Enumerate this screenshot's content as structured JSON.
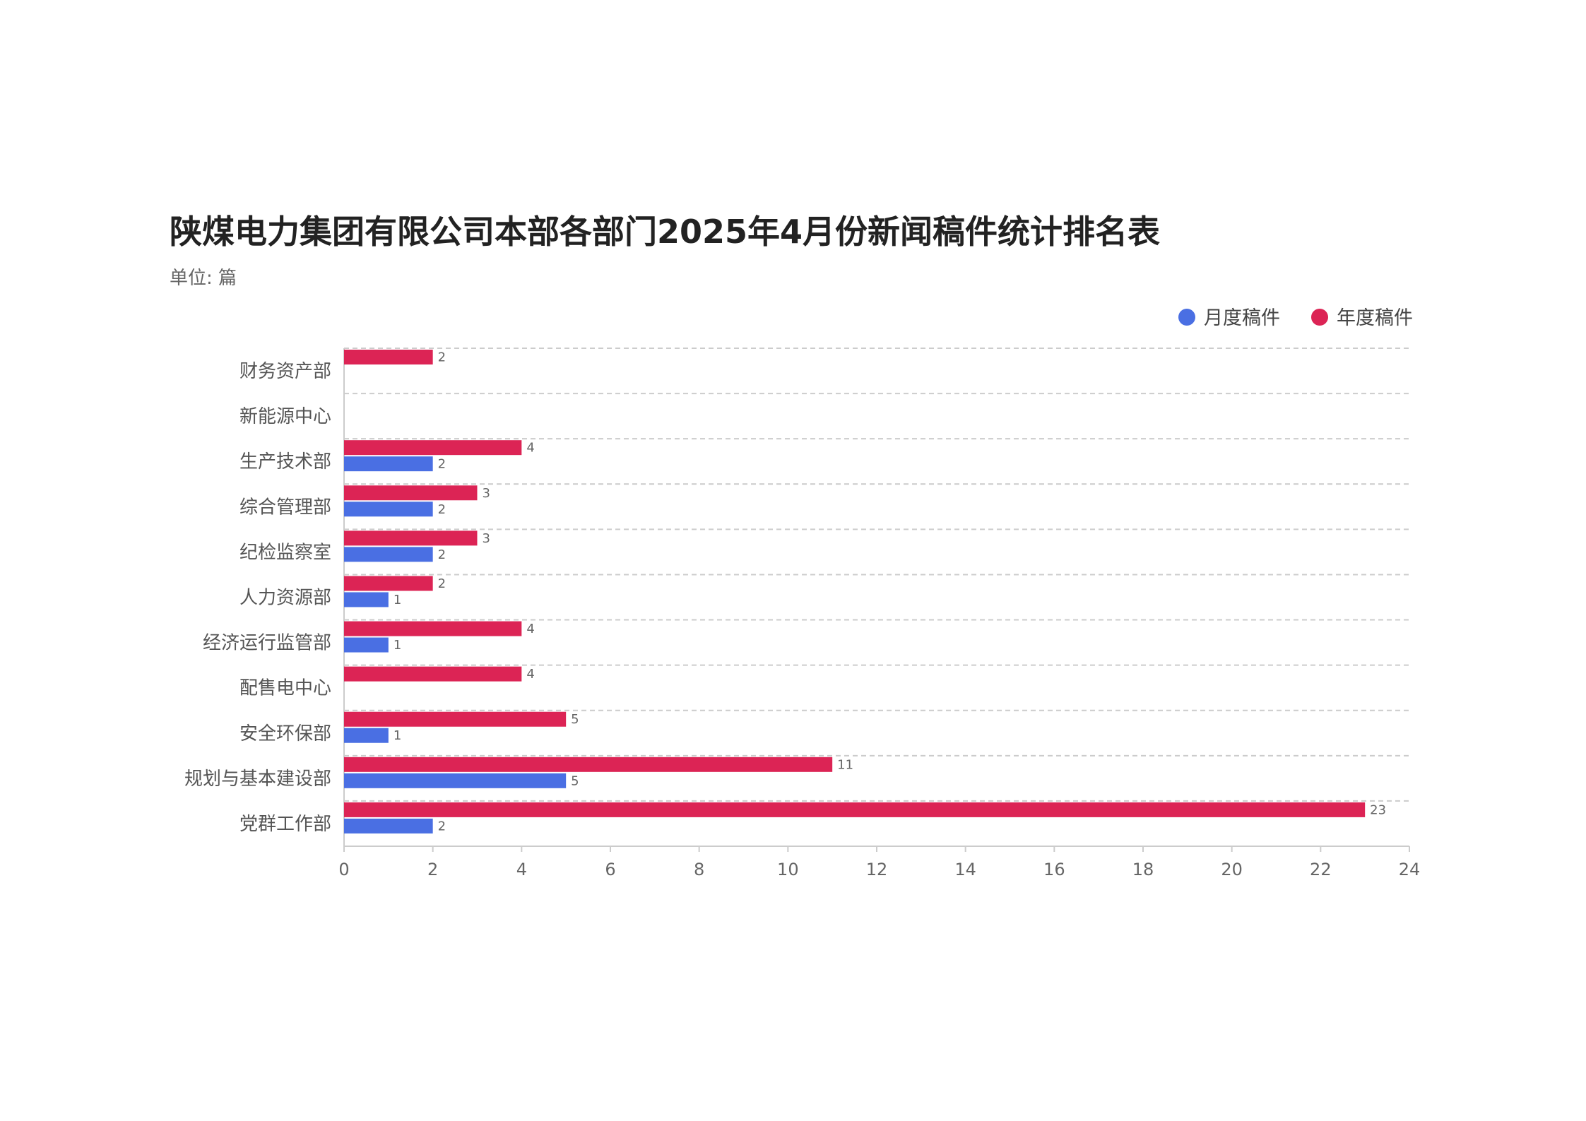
{
  "chart_data": {
    "type": "bar",
    "orientation": "horizontal",
    "title": "陕煤电力集团有限公司本部各部门2025年4月份新闻稿件统计排名表",
    "subtitle": "单位: 篇",
    "categories": [
      "财务资产部",
      "新能源中心",
      "生产技术部",
      "综合管理部",
      "纪检监察室",
      "人力资源部",
      "经济运行监管部",
      "配售电中心",
      "安全环保部",
      "规划与基本建设部",
      "党群工作部"
    ],
    "series": [
      {
        "name": "月度稿件",
        "color": "#4a6fe3",
        "values": [
          null,
          null,
          2,
          2,
          2,
          1,
          1,
          null,
          1,
          5,
          2
        ]
      },
      {
        "name": "年度稿件",
        "color": "#dc2455",
        "values": [
          2,
          null,
          4,
          3,
          3,
          2,
          4,
          4,
          5,
          11,
          23
        ]
      }
    ],
    "xlim": [
      0,
      24
    ],
    "xticks": [
      "0",
      "2",
      "4",
      "6",
      "8",
      "10",
      "12",
      "14",
      "16",
      "18",
      "20",
      "22",
      "24"
    ],
    "grid": "horizontal dashed",
    "legend_position": "top-right"
  }
}
